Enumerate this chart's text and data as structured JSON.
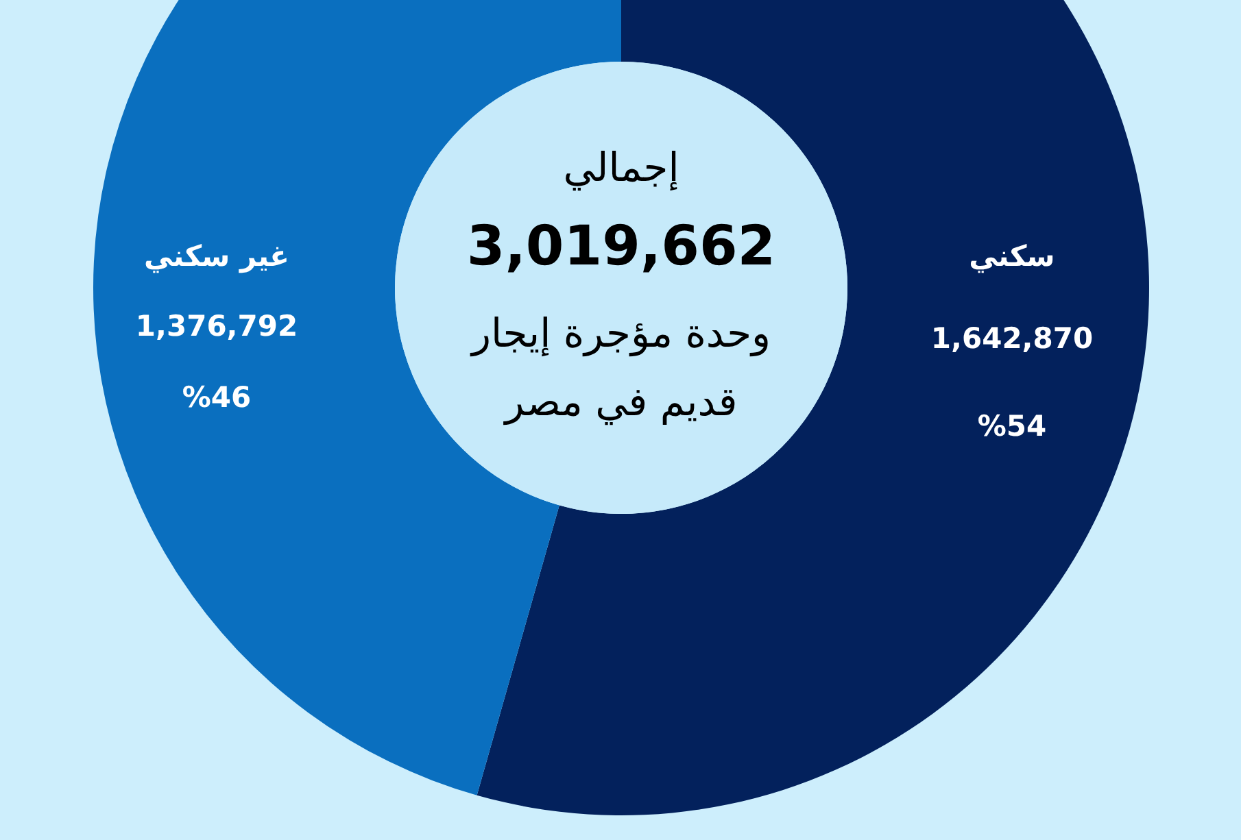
{
  "chart_data": {
    "type": "donut",
    "title": "إجمالي",
    "subtitle": "وحدة مؤجرة إيجار قديم في مصر",
    "categories": [
      "سكني",
      "غير سكني"
    ],
    "values": [
      1642870,
      1376792
    ],
    "value_labels": [
      "1,642,870",
      "1,376,792"
    ],
    "colors": [
      "#03215c",
      "#0a6fbf"
    ],
    "annotations": [
      "3,019,662",
      {
        "text": "%54",
        "x": "سكني"
      },
      {
        "text": "%46",
        "x": "غير سكني"
      }
    ]
  }
}
